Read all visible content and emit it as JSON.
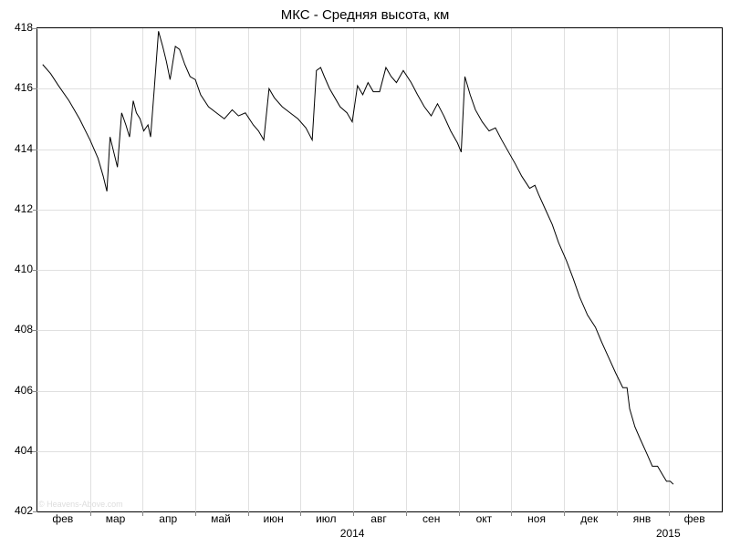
{
  "chart": {
    "type": "line",
    "title": "МКС - Средняя высота, км",
    "title_fontsize": 15,
    "background_color": "#ffffff",
    "plot_border_color": "#000000",
    "grid_color": "#e0e0e0",
    "line_color": "#000000",
    "line_width": 1,
    "watermark": "© Heavens-Above.com",
    "watermark_color": "#dddddd",
    "ylim": [
      402,
      418
    ],
    "ytick_step": 2,
    "y_ticks": [
      402,
      404,
      406,
      408,
      410,
      412,
      414,
      416,
      418
    ],
    "x_months": [
      "фев",
      "мар",
      "апр",
      "май",
      "июн",
      "июл",
      "авг",
      "сен",
      "окт",
      "ноя",
      "дек",
      "янв",
      "фев"
    ],
    "x_years": [
      {
        "label": "2014",
        "pos_month_index": 5.5
      },
      {
        "label": "2015",
        "pos_month_index": 11.5
      }
    ],
    "label_fontsize": 12,
    "data_points": [
      [
        0.0,
        416.8
      ],
      [
        0.15,
        416.5
      ],
      [
        0.3,
        416.1
      ],
      [
        0.5,
        415.6
      ],
      [
        0.7,
        415.0
      ],
      [
        0.9,
        414.3
      ],
      [
        1.05,
        413.7
      ],
      [
        1.15,
        413.1
      ],
      [
        1.22,
        412.6
      ],
      [
        1.28,
        414.4
      ],
      [
        1.35,
        413.9
      ],
      [
        1.42,
        413.4
      ],
      [
        1.5,
        415.2
      ],
      [
        1.58,
        414.8
      ],
      [
        1.65,
        414.4
      ],
      [
        1.72,
        415.6
      ],
      [
        1.78,
        415.2
      ],
      [
        1.85,
        415.0
      ],
      [
        1.92,
        414.6
      ],
      [
        2.0,
        414.8
      ],
      [
        2.05,
        414.4
      ],
      [
        2.12,
        416.0
      ],
      [
        2.2,
        417.9
      ],
      [
        2.28,
        417.4
      ],
      [
        2.35,
        416.9
      ],
      [
        2.42,
        416.3
      ],
      [
        2.52,
        417.4
      ],
      [
        2.6,
        417.3
      ],
      [
        2.7,
        416.8
      ],
      [
        2.8,
        416.4
      ],
      [
        2.9,
        416.3
      ],
      [
        3.0,
        415.8
      ],
      [
        3.15,
        415.4
      ],
      [
        3.3,
        415.2
      ],
      [
        3.45,
        415.0
      ],
      [
        3.6,
        415.3
      ],
      [
        3.72,
        415.1
      ],
      [
        3.85,
        415.2
      ],
      [
        4.0,
        414.8
      ],
      [
        4.1,
        414.6
      ],
      [
        4.2,
        414.3
      ],
      [
        4.3,
        416.0
      ],
      [
        4.4,
        415.7
      ],
      [
        4.55,
        415.4
      ],
      [
        4.7,
        415.2
      ],
      [
        4.85,
        415.0
      ],
      [
        5.0,
        414.7
      ],
      [
        5.12,
        414.3
      ],
      [
        5.2,
        416.6
      ],
      [
        5.28,
        416.7
      ],
      [
        5.35,
        416.4
      ],
      [
        5.45,
        416.0
      ],
      [
        5.55,
        415.7
      ],
      [
        5.65,
        415.4
      ],
      [
        5.78,
        415.2
      ],
      [
        5.88,
        414.9
      ],
      [
        5.98,
        416.1
      ],
      [
        6.08,
        415.8
      ],
      [
        6.18,
        416.2
      ],
      [
        6.28,
        415.9
      ],
      [
        6.4,
        415.9
      ],
      [
        6.52,
        416.7
      ],
      [
        6.62,
        416.4
      ],
      [
        6.72,
        416.2
      ],
      [
        6.85,
        416.6
      ],
      [
        7.0,
        416.2
      ],
      [
        7.12,
        415.8
      ],
      [
        7.25,
        415.4
      ],
      [
        7.38,
        415.1
      ],
      [
        7.5,
        415.5
      ],
      [
        7.62,
        415.1
      ],
      [
        7.75,
        414.6
      ],
      [
        7.88,
        414.2
      ],
      [
        7.95,
        413.9
      ],
      [
        8.02,
        416.4
      ],
      [
        8.12,
        415.8
      ],
      [
        8.22,
        415.3
      ],
      [
        8.35,
        414.9
      ],
      [
        8.48,
        414.6
      ],
      [
        8.6,
        414.7
      ],
      [
        8.72,
        414.3
      ],
      [
        8.85,
        413.9
      ],
      [
        8.98,
        413.5
      ],
      [
        9.1,
        413.1
      ],
      [
        9.25,
        412.7
      ],
      [
        9.35,
        412.8
      ],
      [
        9.42,
        412.5
      ],
      [
        9.55,
        412.0
      ],
      [
        9.68,
        411.5
      ],
      [
        9.8,
        410.9
      ],
      [
        9.95,
        410.3
      ],
      [
        10.08,
        409.7
      ],
      [
        10.2,
        409.1
      ],
      [
        10.35,
        408.5
      ],
      [
        10.5,
        408.1
      ],
      [
        10.62,
        407.6
      ],
      [
        10.75,
        407.1
      ],
      [
        10.88,
        406.6
      ],
      [
        11.02,
        406.1
      ],
      [
        11.1,
        406.1
      ],
      [
        11.15,
        405.4
      ],
      [
        11.25,
        404.8
      ],
      [
        11.35,
        404.4
      ],
      [
        11.48,
        403.9
      ],
      [
        11.58,
        403.5
      ],
      [
        11.68,
        403.5
      ],
      [
        11.78,
        403.2
      ],
      [
        11.85,
        403.0
      ],
      [
        11.92,
        403.0
      ],
      [
        11.98,
        402.9
      ]
    ]
  }
}
